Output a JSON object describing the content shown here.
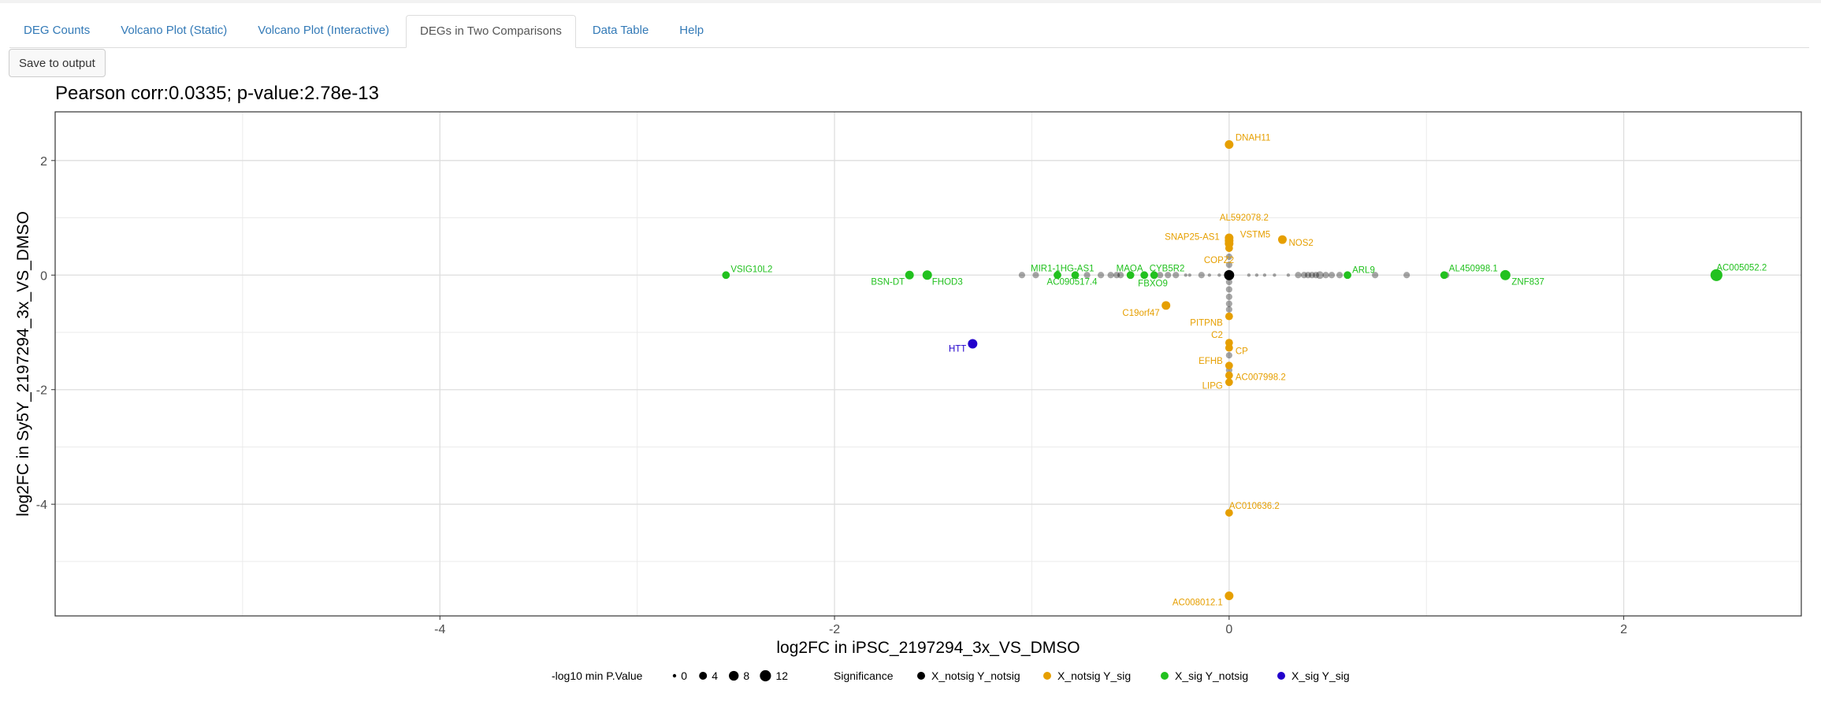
{
  "tabs": [
    {
      "label": "DEG Counts",
      "active": false
    },
    {
      "label": "Volcano Plot (Static)",
      "active": false
    },
    {
      "label": "Volcano Plot (Interactive)",
      "active": false
    },
    {
      "label": "DEGs in Two Comparisons",
      "active": true
    },
    {
      "label": "Data Table",
      "active": false
    },
    {
      "label": "Help",
      "active": false
    }
  ],
  "toolbar": {
    "save_label": "Save to output"
  },
  "chart_data": {
    "type": "scatter",
    "title": "Pearson corr:0.0335; p-value:2.78e-13",
    "xlabel": "log2FC in iPSC_2197294_3x_VS_DMSO",
    "ylabel": "log2FC in Sy5Y_2197294_3x_VS_DMSO",
    "xlim": [
      -5.95,
      2.9
    ],
    "ylim": [
      -5.95,
      2.85
    ],
    "xticks": [
      -4,
      -2,
      0,
      2
    ],
    "yticks": [
      -4,
      -2,
      0,
      2
    ],
    "grid": true,
    "legend_position": "bottom",
    "colors": {
      "X_notsig Y_notsig": "#000000",
      "X_notsig Y_sig": "#E69F00",
      "X_sig Y_notsig": "#22C11F",
      "X_sig Y_sig": "#2200CC"
    },
    "size_legend": {
      "title": "-log10 min P.Value",
      "values": [
        0,
        4,
        8,
        12
      ]
    },
    "color_legend": {
      "title": "Significance",
      "entries": [
        "X_notsig Y_notsig",
        "X_notsig Y_sig",
        "X_sig Y_notsig",
        "X_sig Y_sig"
      ]
    },
    "labeled_points": [
      {
        "label": "DNAH11",
        "x": 0.0,
        "y": 2.28,
        "group": "X_notsig Y_sig",
        "p": 3
      },
      {
        "label": "AL592078.2",
        "x": 0.0,
        "y": 0.65,
        "group": "X_notsig Y_sig",
        "p": 3
      },
      {
        "label": "SNAP25-AS1",
        "x": 0.0,
        "y": 0.55,
        "group": "X_notsig Y_sig",
        "p": 3
      },
      {
        "label": "VSTM5",
        "x": 0.0,
        "y": 0.6,
        "group": "X_notsig Y_sig",
        "p": 3
      },
      {
        "label": "NOS2",
        "x": 0.27,
        "y": 0.62,
        "group": "X_notsig Y_sig",
        "p": 3
      },
      {
        "label": "COPZ2",
        "x": 0.0,
        "y": 0.47,
        "group": "X_notsig Y_sig",
        "p": 2
      },
      {
        "label": "C19orf47",
        "x": -0.32,
        "y": -0.53,
        "group": "X_notsig Y_sig",
        "p": 3
      },
      {
        "label": "PITPNB",
        "x": 0.0,
        "y": -0.72,
        "group": "X_notsig Y_sig",
        "p": 2
      },
      {
        "label": "C2",
        "x": 0.0,
        "y": -1.18,
        "group": "X_notsig Y_sig",
        "p": 2
      },
      {
        "label": "CP",
        "x": 0.0,
        "y": -1.27,
        "group": "X_notsig Y_sig",
        "p": 2
      },
      {
        "label": "EFHB",
        "x": 0.0,
        "y": -1.58,
        "group": "X_notsig Y_sig",
        "p": 2
      },
      {
        "label": "AC007998.2",
        "x": 0.0,
        "y": -1.75,
        "group": "X_notsig Y_sig",
        "p": 2
      },
      {
        "label": "LIPG",
        "x": 0.0,
        "y": -1.87,
        "group": "X_notsig Y_sig",
        "p": 2
      },
      {
        "label": "AC010636.2",
        "x": 0.0,
        "y": -4.15,
        "group": "X_notsig Y_sig",
        "p": 2
      },
      {
        "label": "AC008012.1",
        "x": 0.0,
        "y": -5.6,
        "group": "X_notsig Y_sig",
        "p": 3
      },
      {
        "label": "VSIG10L2",
        "x": -2.55,
        "y": 0.0,
        "group": "X_sig Y_notsig",
        "p": 2
      },
      {
        "label": "BSN-DT",
        "x": -1.62,
        "y": 0.0,
        "group": "X_sig Y_notsig",
        "p": 3
      },
      {
        "label": "FHOD3",
        "x": -1.53,
        "y": 0.0,
        "group": "X_sig Y_notsig",
        "p": 4
      },
      {
        "label": "MIR1-1HG-AS1",
        "x": -0.87,
        "y": 0.0,
        "group": "X_sig Y_notsig",
        "p": 2
      },
      {
        "label": "AC090517.4",
        "x": -0.78,
        "y": 0.0,
        "group": "X_sig Y_notsig",
        "p": 2
      },
      {
        "label": "MAOA",
        "x": -0.5,
        "y": 0.0,
        "group": "X_sig Y_notsig",
        "p": 2
      },
      {
        "label": "CYB5R2",
        "x": -0.38,
        "y": 0.0,
        "group": "X_sig Y_notsig",
        "p": 2
      },
      {
        "label": "FBXO9",
        "x": -0.43,
        "y": 0.0,
        "group": "X_sig Y_notsig",
        "p": 2
      },
      {
        "label": "ARL9",
        "x": 0.6,
        "y": 0.0,
        "group": "X_sig Y_notsig",
        "p": 2
      },
      {
        "label": "AL450998.1",
        "x": 1.09,
        "y": 0.0,
        "group": "X_sig Y_notsig",
        "p": 2
      },
      {
        "label": "ZNF837",
        "x": 1.4,
        "y": 0.0,
        "group": "X_sig Y_notsig",
        "p": 5
      },
      {
        "label": "AC005052.2",
        "x": 2.47,
        "y": 0.0,
        "group": "X_sig Y_notsig",
        "p": 8
      },
      {
        "label": "HTT",
        "x": -1.3,
        "y": -1.2,
        "group": "X_sig Y_sig",
        "p": 4
      }
    ],
    "background_points": [
      {
        "x": -1.05,
        "y": 0.0,
        "p": 1
      },
      {
        "x": -0.98,
        "y": 0.0,
        "p": 1
      },
      {
        "x": -0.72,
        "y": 0.0,
        "p": 1
      },
      {
        "x": -0.65,
        "y": 0.0,
        "p": 1
      },
      {
        "x": -0.6,
        "y": 0.0,
        "p": 1
      },
      {
        "x": -0.57,
        "y": 0.0,
        "p": 1
      },
      {
        "x": -0.55,
        "y": 0.0,
        "p": 1
      },
      {
        "x": -0.35,
        "y": 0.0,
        "p": 1
      },
      {
        "x": -0.31,
        "y": 0.0,
        "p": 1
      },
      {
        "x": -0.27,
        "y": 0.0,
        "p": 1
      },
      {
        "x": -0.22,
        "y": 0.0,
        "p": 0
      },
      {
        "x": -0.2,
        "y": 0.0,
        "p": 0
      },
      {
        "x": -0.14,
        "y": 0.0,
        "p": 1
      },
      {
        "x": -0.1,
        "y": 0.0,
        "p": 0
      },
      {
        "x": -0.05,
        "y": 0.0,
        "p": 0
      },
      {
        "x": 0.0,
        "y": 0.0,
        "p": 5
      },
      {
        "x": 0.1,
        "y": 0.0,
        "p": 0
      },
      {
        "x": 0.14,
        "y": 0.0,
        "p": 0
      },
      {
        "x": 0.18,
        "y": 0.0,
        "p": 0
      },
      {
        "x": 0.23,
        "y": 0.0,
        "p": 0
      },
      {
        "x": 0.3,
        "y": 0.0,
        "p": 0
      },
      {
        "x": 0.35,
        "y": 0.0,
        "p": 1
      },
      {
        "x": 0.38,
        "y": 0.0,
        "p": 1
      },
      {
        "x": 0.4,
        "y": 0.0,
        "p": 1
      },
      {
        "x": 0.42,
        "y": 0.0,
        "p": 1
      },
      {
        "x": 0.44,
        "y": 0.0,
        "p": 1
      },
      {
        "x": 0.46,
        "y": 0.0,
        "p": 2
      },
      {
        "x": 0.49,
        "y": 0.0,
        "p": 1
      },
      {
        "x": 0.52,
        "y": 0.0,
        "p": 1
      },
      {
        "x": 0.56,
        "y": 0.0,
        "p": 1
      },
      {
        "x": 0.74,
        "y": 0.0,
        "p": 1
      },
      {
        "x": 0.9,
        "y": 0.0,
        "p": 1
      },
      {
        "x": 1.1,
        "y": 0.0,
        "p": 1
      },
      {
        "x": 0.0,
        "y": 0.18,
        "p": 1
      },
      {
        "x": 0.0,
        "y": 0.32,
        "p": 1
      },
      {
        "x": 0.0,
        "y": -0.12,
        "p": 1
      },
      {
        "x": 0.0,
        "y": -0.25,
        "p": 1
      },
      {
        "x": 0.0,
        "y": -0.38,
        "p": 1
      },
      {
        "x": 0.0,
        "y": -0.5,
        "p": 1
      },
      {
        "x": 0.0,
        "y": -0.6,
        "p": 1
      },
      {
        "x": 0.0,
        "y": -1.4,
        "p": 1
      },
      {
        "x": 0.0,
        "y": -1.66,
        "p": 1
      }
    ]
  }
}
